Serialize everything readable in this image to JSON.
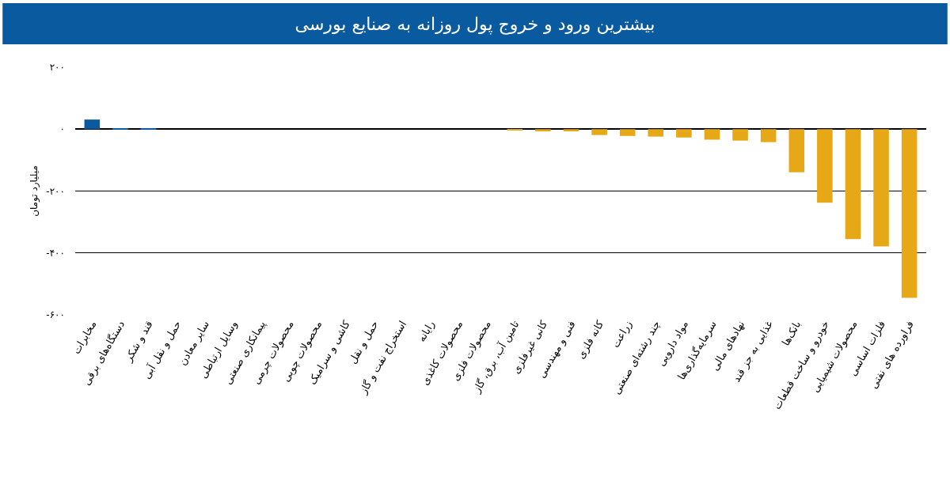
{
  "chart_data": {
    "type": "bar",
    "title": "بیشترین ورود و خروج پول روزانه به صنایع بورسی",
    "ylabel": "میلیارد تومان",
    "categories": [
      "مخابرات",
      "دستگاه‌های برقی",
      "قند و شکر",
      "حمل و نقل آبی",
      "سایر معادن",
      "وسایل ارتباطی",
      "پیمانکاری صنعتی",
      "محصولات چرمی",
      "محصولات چوبی",
      "کاشی و سرامیک",
      "حمل و نقل",
      "استخراج نفت و گاز",
      "رایانه",
      "محصولات کاغذی",
      "محصولات فلزی",
      "تامین آب، برق، گاز",
      "کانی غیرفلزی",
      "فنی و مهندسی",
      "کانه فلزی",
      "زراعت",
      "چند رشته‌ای صنعتی",
      "مواد دارویی",
      "سرمایه‌گذاری‌ها",
      "نهادهای مالی",
      "غذایی به جز قند",
      "بانک‌ها",
      "خودرو و ساخت قطعات",
      "محصولات شیمیایی",
      "فلزات اساسی",
      "فراورده های نفتی"
    ],
    "values": [
      31,
      2,
      2,
      0,
      0,
      0,
      0,
      0,
      0,
      0,
      0,
      0,
      0,
      0,
      0,
      -4,
      -7,
      -7,
      -19,
      -22,
      -24,
      -27,
      -34,
      -37,
      -42,
      -139,
      -238,
      -355,
      -379,
      -545
    ],
    "colors": [
      "#0a5aa0",
      "#0a5aa0",
      "#0a5aa0",
      "#0a5aa0",
      "#0a5aa0",
      "#0a5aa0",
      "#0a5aa0",
      "#0a5aa0",
      "#0a5aa0",
      "#0a5aa0",
      "#0a5aa0",
      "#0a5aa0",
      "#0a5aa0",
      "#0a5aa0",
      "#0a5aa0",
      "#e6a817",
      "#e6a817",
      "#e6a817",
      "#e6a817",
      "#e6a817",
      "#e6a817",
      "#e6a817",
      "#e6a817",
      "#e6a817",
      "#e6a817",
      "#e6a817",
      "#e6a817",
      "#e6a817",
      "#e6a817",
      "#e6a817"
    ],
    "ylim": [
      -600,
      200
    ],
    "yticks": [
      {
        "value": 200,
        "label": "۲۰۰"
      },
      {
        "value": 0,
        "label": "۰"
      },
      {
        "value": -200,
        "label": "-۲۰۰"
      },
      {
        "value": -400,
        "label": "-۴۰۰"
      },
      {
        "value": -600,
        "label": "-۶۰۰"
      }
    ],
    "grid": "y"
  }
}
